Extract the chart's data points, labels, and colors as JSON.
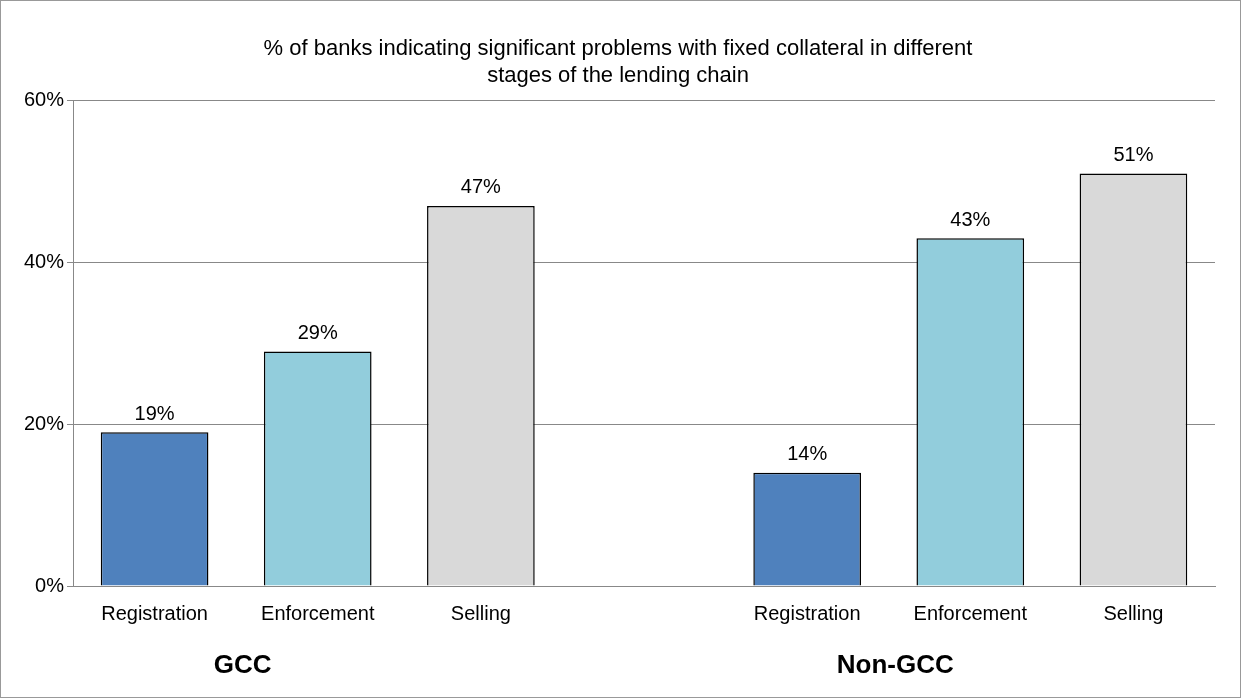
{
  "chart_data": {
    "type": "bar",
    "title": [
      "% of banks indicating significant problems with fixed collateral in different",
      "stages of the lending chain"
    ],
    "categories": [
      "Registration",
      "Enforcement",
      "Selling",
      null,
      "Registration",
      "Enforcement",
      "Selling"
    ],
    "values": [
      19,
      29,
      47,
      null,
      14,
      43,
      51
    ],
    "colors": [
      "#4f81bd",
      "#92cddc",
      "#d9d9d9",
      null,
      "#4f81bd",
      "#92cddc",
      "#d9d9d9"
    ],
    "ylim": [
      0,
      60
    ],
    "yticks": [
      {
        "value": 0,
        "label": "0%"
      },
      {
        "value": 20,
        "label": "20%"
      },
      {
        "value": 40,
        "label": "40%"
      },
      {
        "value": 60,
        "label": "60%"
      }
    ],
    "grid": "y",
    "data_labels": true,
    "value_labels": [
      "19%",
      "29%",
      "47%",
      null,
      "14%",
      "43%",
      "51%"
    ],
    "annotations": [
      "GCC",
      "Non-GCC"
    ]
  }
}
